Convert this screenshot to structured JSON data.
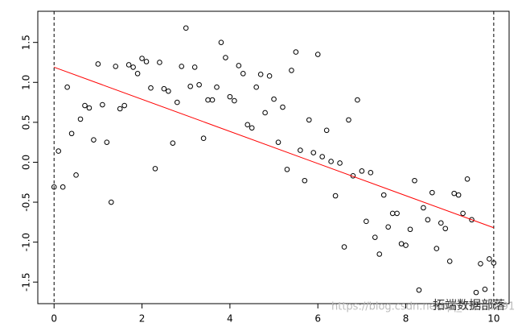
{
  "chart_data": {
    "type": "scatter",
    "x": [
      0,
      0.1,
      0.2,
      0.3,
      0.4,
      0.5,
      0.6,
      0.7,
      0.8,
      0.9,
      1,
      1.1,
      1.2,
      1.3,
      1.4,
      1.5,
      1.6,
      1.7,
      1.8,
      1.9,
      2,
      2.1,
      2.2,
      2.3,
      2.4,
      2.5,
      2.6,
      2.7,
      2.8,
      2.9,
      3,
      3.1,
      3.2,
      3.3,
      3.4,
      3.5,
      3.6,
      3.7,
      3.8,
      3.9,
      4,
      4.1,
      4.2,
      4.3,
      4.4,
      4.5,
      4.6,
      4.7,
      4.8,
      4.9,
      5,
      5.1,
      5.2,
      5.3,
      5.4,
      5.5,
      5.6,
      5.7,
      5.8,
      5.9,
      6,
      6.1,
      6.2,
      6.3,
      6.4,
      6.5,
      6.6,
      6.7,
      6.8,
      6.9,
      7,
      7.1,
      7.2,
      7.3,
      7.4,
      7.5,
      7.6,
      7.7,
      7.8,
      7.9,
      8,
      8.1,
      8.2,
      8.3,
      8.4,
      8.5,
      8.6,
      8.7,
      8.8,
      8.9,
      9,
      9.1,
      9.2,
      9.3,
      9.4,
      9.5,
      9.6,
      9.7,
      9.8,
      9.9,
      10
    ],
    "values": [
      -0.31,
      0.14,
      -0.31,
      0.94,
      0.36,
      -0.16,
      0.54,
      0.71,
      0.68,
      0.28,
      1.23,
      0.72,
      0.25,
      -0.5,
      1.2,
      0.67,
      0.71,
      1.22,
      1.19,
      1.11,
      1.3,
      1.26,
      0.93,
      -0.08,
      1.25,
      0.92,
      0.89,
      0.24,
      0.75,
      1.2,
      1.68,
      0.95,
      1.19,
      0.97,
      0.3,
      0.78,
      0.78,
      0.94,
      1.5,
      1.31,
      0.82,
      0.77,
      1.21,
      1.11,
      0.47,
      0.43,
      0.94,
      1.1,
      0.62,
      1.08,
      0.79,
      0.25,
      0.69,
      -0.09,
      1.15,
      1.38,
      0.15,
      -0.23,
      0.53,
      0.12,
      1.35,
      0.07,
      0.4,
      0.01,
      -0.42,
      -0.01,
      -1.06,
      0.53,
      -0.17,
      0.78,
      -0.11,
      -0.74,
      -0.13,
      -0.94,
      -1.15,
      -0.41,
      -0.81,
      -0.64,
      -0.64,
      -1.02,
      -1.04,
      -0.84,
      -0.23,
      -1.6,
      -0.57,
      -0.72,
      -0.38,
      -1.08,
      -0.76,
      -0.83,
      -1.24,
      -0.39,
      -0.41,
      -0.64,
      -0.21,
      -0.72,
      -1.63,
      -1.27,
      -1.59,
      -1.21,
      -1.26
    ],
    "color": "#000000",
    "fit_line": {
      "x": [
        0,
        10
      ],
      "y": [
        1.19,
        -0.82
      ],
      "color": "#ff0000"
    },
    "vlines": [
      0,
      10
    ],
    "xlim": [
      -0.37,
      10.35
    ],
    "ylim": [
      -1.77,
      1.89
    ],
    "xticks": [
      0,
      2,
      4,
      6,
      8,
      10
    ],
    "yticks": [
      -1.5,
      {
        "value": -1,
        "label": "-1.0"
      },
      -0.5,
      {
        "value": 0,
        "label": "0.0"
      },
      0.5,
      {
        "value": 1,
        "label": "1.0"
      },
      1.5
    ],
    "watermark": [
      "https://blog.csdn.net/qq_19600291",
      "拓端数据部落"
    ]
  }
}
